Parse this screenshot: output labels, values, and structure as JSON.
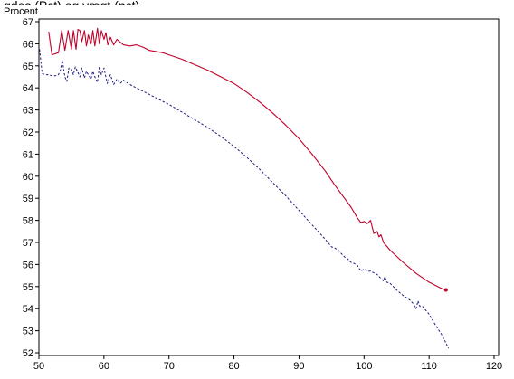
{
  "chart_data": {
    "type": "line",
    "title": "gdes (Pct) og vægt (pct)",
    "xlabel": "",
    "ylabel": "Procent",
    "xlim": [
      50,
      120
    ],
    "ylim": [
      52,
      67
    ],
    "x_ticks": [
      "50",
      "60",
      "70",
      "80",
      "90",
      "100",
      "110",
      "120"
    ],
    "y_ticks": [
      "52",
      "53",
      "54",
      "55",
      "56",
      "57",
      "58",
      "59",
      "60",
      "61",
      "62",
      "63",
      "64",
      "65",
      "66",
      "67"
    ],
    "grid": false,
    "legend": "none",
    "series": [
      {
        "style": "solid",
        "color": "#c0002a",
        "x": [
          51.5,
          52.0,
          53.0,
          53.5,
          54.0,
          54.5,
          55.0,
          55.3,
          55.7,
          56.0,
          56.3,
          56.6,
          57.0,
          57.3,
          57.6,
          58.0,
          58.3,
          58.6,
          59.0,
          59.3,
          59.6,
          60.0,
          60.3,
          60.6,
          61.0,
          61.5,
          62.0,
          63.0,
          64.0,
          65.0,
          66.0,
          67.0,
          68.0,
          69.0,
          70.0,
          72.0,
          74.0,
          76.0,
          78.0,
          80.0,
          82.0,
          84.0,
          86.0,
          88.0,
          90.0,
          92.0,
          94.0,
          95.5,
          96.0,
          97.0,
          98.0,
          99.0,
          99.5,
          100.0,
          100.5,
          101.0,
          101.5,
          102.0,
          102.3,
          102.6,
          103.0,
          104.0,
          106.0,
          108.0,
          110.0,
          112.0,
          112.6
        ],
        "y": [
          66.55,
          65.5,
          65.6,
          66.6,
          65.7,
          66.6,
          65.75,
          66.6,
          65.75,
          66.65,
          66.6,
          66.1,
          66.6,
          65.9,
          66.4,
          66.0,
          66.6,
          65.9,
          66.7,
          66.0,
          66.6,
          66.2,
          66.5,
          65.95,
          66.3,
          65.95,
          66.2,
          65.95,
          65.9,
          65.95,
          65.85,
          65.7,
          65.65,
          65.6,
          65.5,
          65.3,
          65.05,
          64.8,
          64.5,
          64.2,
          63.8,
          63.35,
          62.85,
          62.3,
          61.7,
          61.0,
          60.25,
          59.6,
          59.4,
          59.0,
          58.6,
          58.1,
          57.9,
          57.95,
          57.85,
          58.0,
          57.4,
          57.5,
          57.25,
          57.35,
          57.0,
          56.65,
          56.1,
          55.6,
          55.2,
          54.9,
          54.85
        ],
        "end_marker": true
      },
      {
        "style": "dashed",
        "color": "#1a1a80",
        "x": [
          50.1,
          50.5,
          51.0,
          51.5,
          52.0,
          52.5,
          53.0,
          53.3,
          53.6,
          54.0,
          54.3,
          54.6,
          55.0,
          55.3,
          55.6,
          56.0,
          56.3,
          56.6,
          57.0,
          57.3,
          57.6,
          58.0,
          58.3,
          58.6,
          59.0,
          59.3,
          59.6,
          60.0,
          60.5,
          61.0,
          61.5,
          62.0,
          62.5,
          63.0,
          64.0,
          65.0,
          66.0,
          67.0,
          68.0,
          70.0,
          72.0,
          74.0,
          76.0,
          78.0,
          80.0,
          82.0,
          84.0,
          86.0,
          88.0,
          90.0,
          92.0,
          94.0,
          95.0,
          95.5,
          96.0,
          96.5,
          97.0,
          97.5,
          98.0,
          98.5,
          99.0,
          99.5,
          100.0,
          100.5,
          101.0,
          102.0,
          103.0,
          103.2,
          103.5,
          104.0,
          104.5,
          105.0,
          106.0,
          107.0,
          107.5,
          108.0,
          108.3,
          108.6,
          109.0,
          110.0,
          111.0,
          112.0,
          113.0
        ],
        "y": [
          65.75,
          64.65,
          64.6,
          64.6,
          64.55,
          64.55,
          64.6,
          64.8,
          65.25,
          64.5,
          64.3,
          64.9,
          64.85,
          64.6,
          64.95,
          64.7,
          64.5,
          64.9,
          64.45,
          64.75,
          64.6,
          64.4,
          64.75,
          64.5,
          64.25,
          64.95,
          64.6,
          64.9,
          64.2,
          64.6,
          64.15,
          64.4,
          64.2,
          64.35,
          64.15,
          64.0,
          63.85,
          63.7,
          63.55,
          63.25,
          62.9,
          62.55,
          62.2,
          61.8,
          61.35,
          60.85,
          60.3,
          59.7,
          59.1,
          58.45,
          57.8,
          57.15,
          56.8,
          56.75,
          56.65,
          56.5,
          56.35,
          56.25,
          56.1,
          56.05,
          55.95,
          55.7,
          55.8,
          55.7,
          55.7,
          55.55,
          55.25,
          55.45,
          55.2,
          55.15,
          55.0,
          54.85,
          54.6,
          54.4,
          54.25,
          54.0,
          54.35,
          54.1,
          54.1,
          53.75,
          53.25,
          52.8,
          52.2
        ],
        "end_marker": false
      }
    ]
  }
}
